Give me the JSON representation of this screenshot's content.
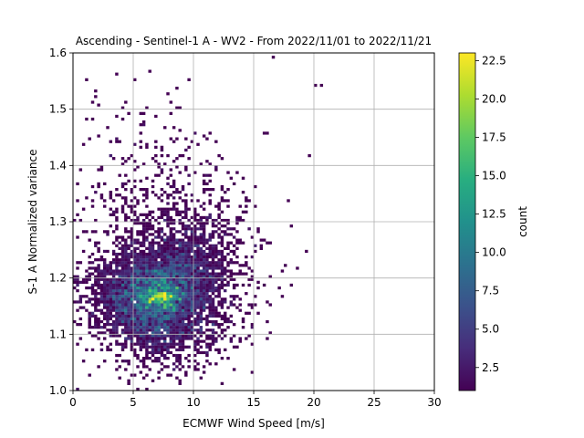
{
  "chart_data": {
    "type": "heatmap",
    "title": "Ascending - Sentinel-1 A - WV2 - From 2022/11/01 to 2022/11/21",
    "xlabel": "ECMWF Wind Speed [m/s]",
    "ylabel": "S-1 A Normalized variance",
    "xlim": [
      0,
      30
    ],
    "ylim": [
      1.0,
      1.6
    ],
    "xticks": [
      0,
      5,
      10,
      15,
      20,
      25,
      30
    ],
    "xtick_labels": [
      "0",
      "5",
      "10",
      "15",
      "20",
      "25",
      "30"
    ],
    "yticks": [
      1.0,
      1.1,
      1.2,
      1.3,
      1.4,
      1.5,
      1.6
    ],
    "ytick_labels": [
      "1.0",
      "1.1",
      "1.2",
      "1.3",
      "1.4",
      "1.5",
      "1.6"
    ],
    "grid": true,
    "colormap": "viridis",
    "colorbar": {
      "label": "count",
      "range": [
        1,
        23
      ],
      "ticks": [
        2.5,
        5.0,
        7.5,
        10.0,
        12.5,
        15.0,
        17.5,
        20.0,
        22.5
      ],
      "tick_labels": [
        "2.5",
        "5.0",
        "7.5",
        "10.0",
        "12.5",
        "15.0",
        "17.5",
        "20.0",
        "22.5"
      ]
    },
    "bin_size": {
      "x": 0.25,
      "y": 0.005
    },
    "density_peak": {
      "x": 7.2,
      "y": 1.165,
      "count": 23
    },
    "outlier_bins": [
      {
        "x": 0.3,
        "y": 1.005,
        "count": 2
      },
      {
        "x": 0.8,
        "y": 1.245,
        "count": 1
      },
      {
        "x": 0.8,
        "y": 1.285,
        "count": 1
      },
      {
        "x": 1.2,
        "y": 1.075,
        "count": 1
      },
      {
        "x": 1.2,
        "y": 1.555,
        "count": 1
      },
      {
        "x": 1.5,
        "y": 1.51,
        "count": 1
      },
      {
        "x": 1.8,
        "y": 1.53,
        "count": 1
      },
      {
        "x": 2.2,
        "y": 1.045,
        "count": 1
      },
      {
        "x": 2.8,
        "y": 1.47,
        "count": 1
      },
      {
        "x": 3.3,
        "y": 1.11,
        "count": 1
      },
      {
        "x": 3.8,
        "y": 1.02,
        "count": 1
      },
      {
        "x": 4.0,
        "y": 1.48,
        "count": 1
      },
      {
        "x": 5.5,
        "y": 1.46,
        "count": 1
      },
      {
        "x": 5.8,
        "y": 1.04,
        "count": 1
      },
      {
        "x": 6.2,
        "y": 1.5,
        "count": 1
      },
      {
        "x": 8.5,
        "y": 1.395,
        "count": 1
      },
      {
        "x": 11.8,
        "y": 1.395,
        "count": 1
      },
      {
        "x": 15.5,
        "y": 1.25,
        "count": 1
      },
      {
        "x": 16.2,
        "y": 1.46,
        "count": 1
      },
      {
        "x": 16.5,
        "y": 1.59,
        "count": 1
      },
      {
        "x": 17.3,
        "y": 1.165,
        "count": 1
      },
      {
        "x": 18.0,
        "y": 1.29,
        "count": 1
      },
      {
        "x": 18.5,
        "y": 1.22,
        "count": 1
      },
      {
        "x": 19.5,
        "y": 1.42,
        "count": 1
      },
      {
        "x": 20.0,
        "y": 1.545,
        "count": 1
      },
      {
        "x": 20.5,
        "y": 1.545,
        "count": 1
      },
      {
        "x": 9.5,
        "y": 1.105,
        "count": 2
      },
      {
        "x": 3.0,
        "y": 1.42,
        "count": 2
      }
    ]
  }
}
